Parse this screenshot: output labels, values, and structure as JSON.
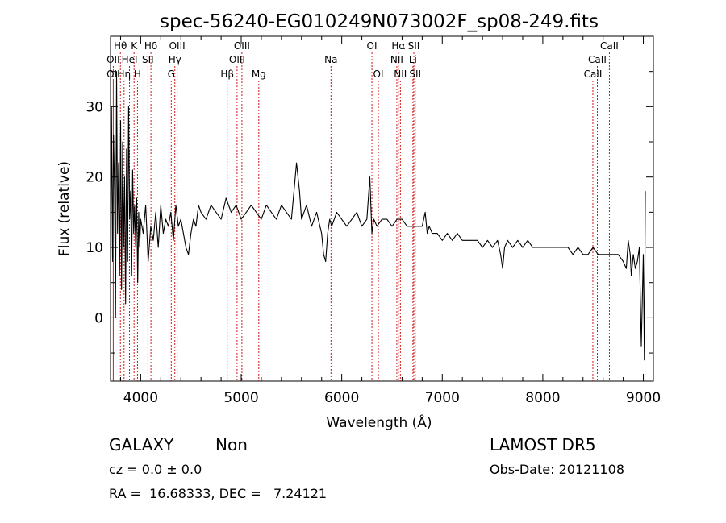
{
  "chart_data": {
    "type": "line",
    "title": "spec-56240-EG010249N073002F_sp08-249.fits",
    "xlabel": "Wavelength (Å)",
    "ylabel": "Flux (relative)",
    "xlim": [
      3700,
      9100
    ],
    "ylim": [
      -9,
      40
    ],
    "xticks": [
      4000,
      5000,
      6000,
      7000,
      8000,
      9000
    ],
    "yticks": [
      0,
      10,
      20,
      30
    ],
    "line_color": "#000000",
    "marker_color": "#cc0000",
    "series": [
      {
        "x": [
          3700,
          3710,
          3720,
          3730,
          3740,
          3750,
          3760,
          3770,
          3780,
          3790,
          3800,
          3810,
          3820,
          3830,
          3840,
          3850,
          3860,
          3870,
          3880,
          3890,
          3900,
          3910,
          3920,
          3930,
          3940,
          3950,
          3960,
          3970,
          3980,
          3990,
          4000,
          4025,
          4050,
          4075,
          4100,
          4125,
          4150,
          4175,
          4200,
          4225,
          4250,
          4275,
          4300,
          4325,
          4350,
          4375,
          4400,
          4425,
          4450,
          4475,
          4500,
          4525,
          4550,
          4575,
          4600,
          4650,
          4700,
          4750,
          4800,
          4850,
          4900,
          4950,
          5000,
          5050,
          5100,
          5150,
          5200,
          5250,
          5300,
          5350,
          5400,
          5450,
          5500,
          5550,
          5580,
          5600,
          5650,
          5700,
          5750,
          5800,
          5820,
          5840,
          5860,
          5880,
          5900,
          5950,
          6000,
          6050,
          6100,
          6150,
          6200,
          6250,
          6280,
          6300,
          6320,
          6350,
          6400,
          6450,
          6500,
          6550,
          6600,
          6650,
          6700,
          6750,
          6800,
          6830,
          6850,
          6870,
          6900,
          6950,
          7000,
          7050,
          7100,
          7150,
          7200,
          7250,
          7300,
          7350,
          7400,
          7450,
          7500,
          7550,
          7580,
          7600,
          7620,
          7650,
          7700,
          7750,
          7800,
          7850,
          7900,
          7950,
          8000,
          8050,
          8100,
          8150,
          8200,
          8250,
          8300,
          8350,
          8400,
          8450,
          8500,
          8550,
          8600,
          8650,
          8700,
          8750,
          8800,
          8830,
          8850,
          8870,
          8880,
          8900,
          8920,
          8940,
          8960,
          8980,
          9000,
          9010,
          9020
        ],
        "y": [
          5,
          30,
          8,
          26,
          18,
          0,
          35,
          12,
          22,
          6,
          28,
          4,
          25,
          10,
          20,
          2,
          24,
          8,
          30,
          14,
          18,
          6,
          21,
          12,
          16,
          10,
          17,
          5,
          15,
          10,
          14,
          12,
          16,
          8,
          13,
          11,
          15,
          10,
          16,
          12,
          14,
          13,
          15,
          11,
          16,
          13,
          14,
          12,
          10,
          9,
          12,
          14,
          13,
          16,
          15,
          14,
          16,
          15,
          14,
          17,
          15,
          16,
          14,
          15,
          16,
          15,
          14,
          16,
          15,
          14,
          16,
          15,
          14,
          22,
          18,
          14,
          16,
          13,
          15,
          12,
          9,
          8,
          12,
          14,
          13,
          15,
          14,
          13,
          14,
          15,
          13,
          14,
          20,
          12,
          14,
          13,
          14,
          14,
          13,
          14,
          14,
          13,
          13,
          13,
          13,
          15,
          12,
          13,
          12,
          12,
          11,
          12,
          11,
          12,
          11,
          11,
          11,
          11,
          10,
          11,
          10,
          11,
          9,
          7,
          10,
          11,
          10,
          11,
          10,
          11,
          10,
          10,
          10,
          10,
          10,
          10,
          10,
          10,
          9,
          10,
          9,
          9,
          10,
          9,
          9,
          9,
          9,
          9,
          8,
          7,
          11,
          9,
          6,
          9,
          7,
          8,
          10,
          -4,
          9,
          -6,
          18
        ]
      }
    ],
    "lines": [
      {
        "label": "Hθ",
        "x": 3798,
        "row": 1
      },
      {
        "label": "OII",
        "x": 3727,
        "row": 2
      },
      {
        "label": "OII",
        "x": 3727,
        "row": 3
      },
      {
        "label": "HeI",
        "x": 3889,
        "row": 2
      },
      {
        "label": "Hη",
        "x": 3835,
        "row": 3
      },
      {
        "label": "K",
        "x": 3934,
        "row": 1
      },
      {
        "label": "H",
        "x": 3968,
        "row": 3
      },
      {
        "label": "Hδ",
        "x": 4102,
        "row": 1
      },
      {
        "label": "SII",
        "x": 4072,
        "row": 2
      },
      {
        "label": "OIII",
        "x": 4363,
        "row": 1
      },
      {
        "label": "Hγ",
        "x": 4340,
        "row": 2
      },
      {
        "label": "G",
        "x": 4304,
        "row": 3
      },
      {
        "label": "Hβ",
        "x": 4861,
        "row": 3
      },
      {
        "label": "OIII",
        "x": 5007,
        "row": 1
      },
      {
        "label": "OIII",
        "x": 4959,
        "row": 2
      },
      {
        "label": "Mg",
        "x": 5175,
        "row": 3
      },
      {
        "label": "Na",
        "x": 5893,
        "row": 2
      },
      {
        "label": "OI",
        "x": 6300,
        "row": 1
      },
      {
        "label": "OI",
        "x": 6364,
        "row": 3
      },
      {
        "label": "Hα",
        "x": 6563,
        "row": 1
      },
      {
        "label": "NII",
        "x": 6548,
        "row": 2
      },
      {
        "label": "NII",
        "x": 6583,
        "row": 3
      },
      {
        "label": "SII",
        "x": 6717,
        "row": 1
      },
      {
        "label": "Li",
        "x": 6708,
        "row": 2
      },
      {
        "label": "SII",
        "x": 6731,
        "row": 3
      },
      {
        "label": "CaII",
        "x": 8662,
        "row": 1
      },
      {
        "label": "CaII",
        "x": 8542,
        "row": 2
      },
      {
        "label": "CaII",
        "x": 8498,
        "row": 3
      }
    ]
  },
  "info": {
    "class_label": "GALAXY",
    "subclass_label": "Non",
    "survey": "LAMOST DR5",
    "cz": "cz = 0.0 ± 0.0",
    "obs_date": "Obs-Date: 20121108",
    "coords": "RA =  16.68333, DEC =   7.24121"
  }
}
